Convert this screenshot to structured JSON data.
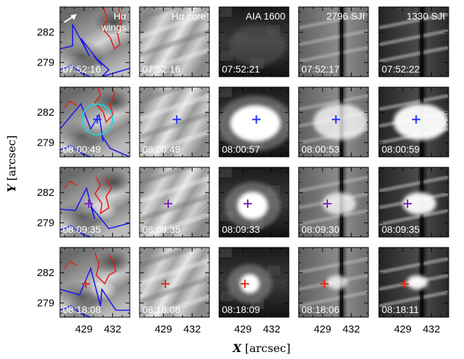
{
  "chart_data": {
    "type": "image-grid",
    "xlabel_var": "X",
    "xlabel_unit": "[arcsec]",
    "ylabel_var": "Y",
    "ylabel_unit": "[arcsec]",
    "x_ticks": [
      "429",
      "432"
    ],
    "y_ticks": [
      "282",
      "279"
    ],
    "x_tick_values": [
      429,
      432
    ],
    "y_tick_values": [
      282,
      279
    ],
    "xlim": [
      426.5,
      433.8
    ],
    "ylim": [
      277.6,
      284.5
    ],
    "columns": [
      {
        "title": "Hα",
        "subtitle": "wings",
        "source": "H-alpha wings"
      },
      {
        "title": "Hα core",
        "subtitle": "",
        "source": "H-alpha core"
      },
      {
        "title": "AIA 1600",
        "subtitle": "",
        "source": "AIA 1600"
      },
      {
        "title": "2796 SJI",
        "subtitle": "",
        "source": "IRIS 2796 SJI"
      },
      {
        "title": "1330 SJI",
        "subtitle": "",
        "source": "IRIS 1330 SJI"
      }
    ],
    "rows": [
      {
        "times": [
          "07:52:16",
          "07:52:16",
          "07:52:21",
          "07:52:17",
          "07:52:22"
        ],
        "marker": null,
        "marker_color": null
      },
      {
        "times": [
          "08:00:49",
          "08:00:49",
          "08:00:57",
          "08:00:53",
          "08:00:59"
        ],
        "marker": [
          430.4,
          281.3
        ],
        "marker_color": "#1a2cff"
      },
      {
        "times": [
          "08:09:35",
          "08:09:35",
          "08:09:33",
          "08:09:30",
          "08:09:35"
        ],
        "marker": [
          429.5,
          280.9
        ],
        "marker_color": "#7a1fb0"
      },
      {
        "times": [
          "08:18:08",
          "08:18:08",
          "08:18:09",
          "08:18:06",
          "08:18:11"
        ],
        "marker": [
          429.2,
          280.9
        ],
        "marker_color": "#e02a1a"
      }
    ],
    "circle": {
      "row": 1,
      "col": 0,
      "center": [
        430.4,
        281.3
      ],
      "radius": 1.6,
      "color": "#22d3d3"
    },
    "contour_colors": {
      "positive": "#e0201a",
      "negative": "#1a1aee"
    },
    "colormap": "grayscale"
  }
}
